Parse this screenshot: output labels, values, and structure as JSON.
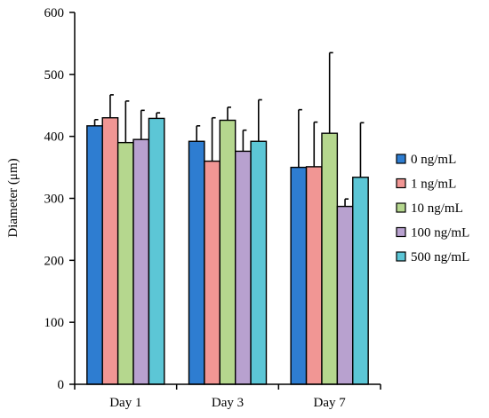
{
  "chart_data": {
    "type": "bar",
    "title": "",
    "xlabel": "",
    "ylabel": "Diameter (μm)",
    "ylim": [
      0,
      600
    ],
    "yticks": [
      0,
      100,
      200,
      300,
      400,
      500,
      600
    ],
    "grid": false,
    "legend_position": "right",
    "categories": [
      "Day 1",
      "Day 3",
      "Day 7"
    ],
    "error_bars": "upper",
    "series": [
      {
        "name": "0 ng/mL",
        "color": "#2E7DD1",
        "values": [
          417,
          392,
          350
        ],
        "errors": [
          10,
          25,
          93
        ]
      },
      {
        "name": "1 ng/mL",
        "color": "#F19694",
        "values": [
          430,
          360,
          351
        ],
        "errors": [
          37,
          70,
          72
        ]
      },
      {
        "name": "10 ng/mL",
        "color": "#B5D78E",
        "values": [
          390,
          426,
          405
        ],
        "errors": [
          67,
          21,
          130
        ]
      },
      {
        "name": "100 ng/mL",
        "color": "#B8A1CF",
        "values": [
          395,
          376,
          287
        ],
        "errors": [
          47,
          34,
          12
        ]
      },
      {
        "name": "500 ng/mL",
        "color": "#5CC6D6",
        "values": [
          429,
          392,
          334
        ],
        "errors": [
          9,
          67,
          88
        ]
      }
    ]
  }
}
